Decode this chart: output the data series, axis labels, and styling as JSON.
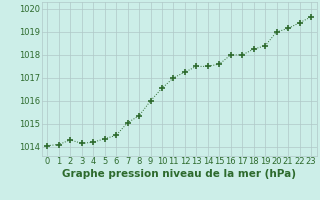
{
  "x": [
    0,
    1,
    2,
    3,
    4,
    5,
    6,
    7,
    8,
    9,
    10,
    11,
    12,
    13,
    14,
    15,
    16,
    17,
    18,
    19,
    20,
    21,
    22,
    23
  ],
  "y": [
    1014.05,
    1014.1,
    1014.3,
    1014.15,
    1014.2,
    1014.35,
    1014.5,
    1015.05,
    1015.35,
    1016.0,
    1016.55,
    1017.0,
    1017.25,
    1017.5,
    1017.5,
    1017.6,
    1018.0,
    1018.0,
    1018.25,
    1018.4,
    1019.0,
    1019.15,
    1019.4,
    1019.65
  ],
  "line_color": "#2d6a2d",
  "marker": "+",
  "marker_size": 4,
  "marker_lw": 1.2,
  "bg_color": "#cceee8",
  "grid_color": "#b0c8c8",
  "title": "Graphe pression niveau de la mer (hPa)",
  "title_color": "#2d6a2d",
  "tick_color": "#2d6a2d",
  "ylim": [
    1013.6,
    1020.3
  ],
  "yticks": [
    1014,
    1015,
    1016,
    1017,
    1018,
    1019,
    1020
  ],
  "xlim": [
    -0.5,
    23.5
  ],
  "xticks": [
    0,
    1,
    2,
    3,
    4,
    5,
    6,
    7,
    8,
    9,
    10,
    11,
    12,
    13,
    14,
    15,
    16,
    17,
    18,
    19,
    20,
    21,
    22,
    23
  ],
  "title_fontsize": 7.5,
  "tick_fontsize": 6.0,
  "line_width": 0.7
}
